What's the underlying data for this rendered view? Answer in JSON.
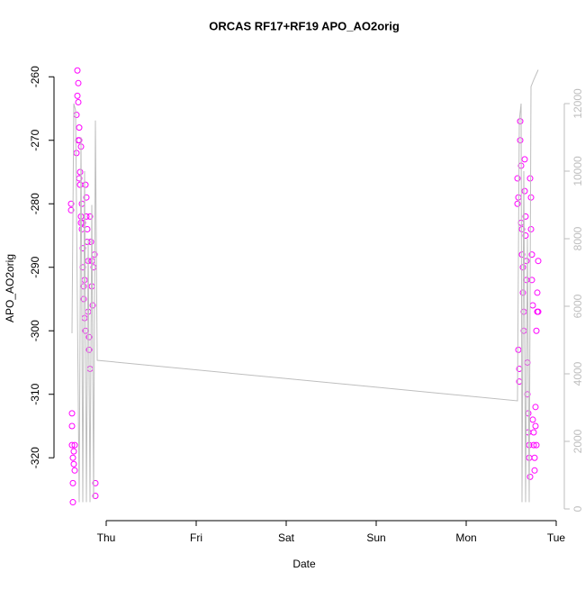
{
  "chart_data": {
    "type": "scatter",
    "title": "ORCAS RF17+RF19 APO_AO2orig",
    "xlabel": "Date",
    "ylabel": "APO_AO2orig",
    "xlim": [
      0.42,
      6.09
    ],
    "xticks": [
      {
        "value": 1,
        "label": "Thu"
      },
      {
        "value": 2,
        "label": "Fri"
      },
      {
        "value": 3,
        "label": "Sat"
      },
      {
        "value": 4,
        "label": "Sun"
      },
      {
        "value": 5,
        "label": "Mon"
      },
      {
        "value": 6,
        "label": "Tue"
      }
    ],
    "ylim": [
      -329.9,
      -256.7
    ],
    "yticks": [
      -320,
      -310,
      -300,
      -290,
      -280,
      -270,
      -260
    ],
    "y2lim": [
      -347,
      13413
    ],
    "y2ticks": [
      0,
      2000,
      4000,
      6000,
      8000,
      10000,
      12000
    ],
    "y2_color": "#bebebe",
    "series": [
      {
        "type": "scatter",
        "color": "#ff00ff",
        "x": [
          0.61,
          0.61,
          0.62,
          0.62,
          0.62,
          0.63,
          0.63,
          0.63,
          0.64,
          0.64,
          0.65,
          0.65,
          0.67,
          0.67,
          0.68,
          0.68,
          0.69,
          0.69,
          0.7,
          0.7,
          0.71,
          0.71,
          0.72,
          0.72,
          0.73,
          0.73,
          0.74,
          0.74,
          0.75,
          0.75,
          0.76,
          0.76,
          0.77,
          0.77,
          0.78,
          0.78,
          0.79,
          0.79,
          0.8,
          0.8,
          0.81,
          0.81,
          0.82,
          0.82,
          0.83,
          0.84,
          0.84,
          0.85,
          0.86,
          0.87,
          0.88,
          0.88,
          0.69,
          0.7,
          0.72,
          0.74,
          5.57,
          5.57,
          5.58,
          5.58,
          5.59,
          5.59,
          5.6,
          5.6,
          5.61,
          5.61,
          5.62,
          5.62,
          5.63,
          5.63,
          5.64,
          5.64,
          5.65,
          5.65,
          5.66,
          5.66,
          5.67,
          5.67,
          5.68,
          5.68,
          5.69,
          5.69,
          5.7,
          5.7,
          5.71,
          5.71,
          5.72,
          5.72,
          5.73,
          5.73,
          5.74,
          5.74,
          5.75,
          5.75,
          5.76,
          5.76,
          5.77,
          5.77,
          5.78,
          5.78,
          5.79,
          5.79,
          5.8,
          5.8
        ],
        "values": [
          -280,
          -281,
          -313,
          -315,
          -318,
          -320,
          -324,
          -327,
          -319,
          -321,
          -322,
          -318,
          -272,
          -266,
          -263,
          -259,
          -261,
          -264,
          -268,
          -270,
          -275,
          -277,
          -282,
          -283,
          -284,
          -280,
          -287,
          -290,
          -293,
          -295,
          -292,
          -298,
          -300,
          -277,
          -279,
          -282,
          -284,
          -286,
          -289,
          -297,
          -301,
          -303,
          -306,
          -282,
          -286,
          -289,
          -293,
          -296,
          -290,
          -288,
          -324,
          -326,
          -270,
          -276,
          -271,
          -283,
          -276,
          -280,
          -279,
          -303,
          -306,
          -308,
          -267,
          -270,
          -274,
          -283,
          -284,
          -288,
          -290,
          -294,
          -297,
          -300,
          -273,
          -278,
          -282,
          -285,
          -289,
          -292,
          -305,
          -310,
          -313,
          -316,
          -318,
          -320,
          -323,
          -276,
          -279,
          -284,
          -288,
          -292,
          -296,
          -314,
          -316,
          -318,
          -320,
          -322,
          -315,
          -312,
          -318,
          -300,
          -297,
          -294,
          -289,
          -297
        ]
      },
      {
        "type": "line",
        "color": "#bebebe",
        "axis": "y2",
        "x": [
          0.62,
          0.64,
          0.66,
          0.7,
          0.72,
          0.74,
          0.76,
          0.78,
          0.8,
          0.82,
          0.84,
          0.86,
          0.88,
          0.9,
          5.57,
          5.59,
          5.61,
          5.62,
          5.64,
          5.66,
          5.68,
          5.7,
          5.72,
          5.75,
          5.8
        ],
        "values": [
          5200,
          12000,
          11800,
          200,
          11000,
          200,
          10000,
          200,
          8000,
          200,
          9000,
          300,
          11500,
          4400,
          3200,
          11500,
          12000,
          200,
          10000,
          200,
          8000,
          200,
          12500,
          12700,
          13000
        ]
      }
    ]
  }
}
